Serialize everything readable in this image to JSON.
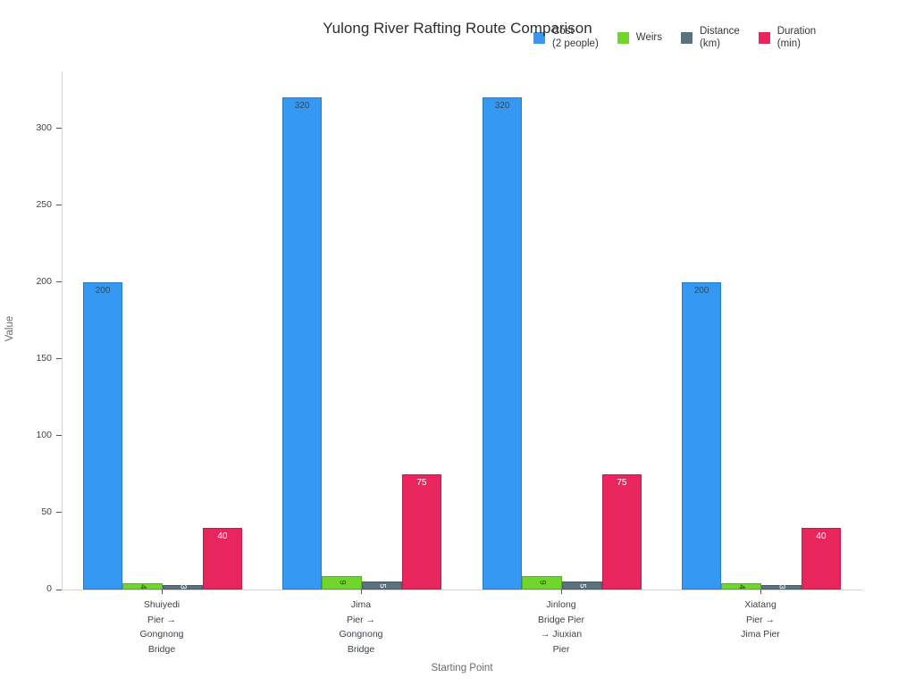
{
  "chart_data": {
    "type": "bar",
    "title": "Yulong River Rafting Route Comparison",
    "xlabel": "Starting Point",
    "ylabel": "Value",
    "ylim": [
      0,
      337
    ],
    "yticks": [
      0,
      50,
      100,
      150,
      200,
      250,
      300
    ],
    "grid": false,
    "legend_position": "top-right",
    "categories": [
      "Shuiyedi\nPier →\nGongnong\nBridge",
      "Jima\nPier →\nGongnong\nBridge",
      "Jinlong\nBridge Pier\n→ Jiuxian\nPier",
      "Xiatang\nPier →\nJima Pier"
    ],
    "series": [
      {
        "name": "Cost\n(2 people)",
        "values": [
          200,
          320,
          320,
          200
        ],
        "color": "#3598f2",
        "label_color": "#3f464d",
        "label_rotated": false
      },
      {
        "name": "Weirs",
        "values": [
          4,
          9,
          9,
          4
        ],
        "color": "#70d62c",
        "label_color": "#2f3b17",
        "label_rotated": true
      },
      {
        "name": "Distance\n(km)",
        "values": [
          3,
          5,
          5,
          3
        ],
        "color": "#5a7180",
        "label_color": "#ffffff",
        "label_rotated": true
      },
      {
        "name": "Duration\n(min)",
        "values": [
          40,
          75,
          75,
          40
        ],
        "color": "#e9255e",
        "label_color": "#ffffff",
        "label_rotated": false
      }
    ]
  },
  "colors": {
    "axis_line": "#d4d4d4",
    "tick_mark": "#555555",
    "tick_text": "#3d4349",
    "muted_text": "#6b6b6b",
    "title_text": "#2b2f33"
  }
}
